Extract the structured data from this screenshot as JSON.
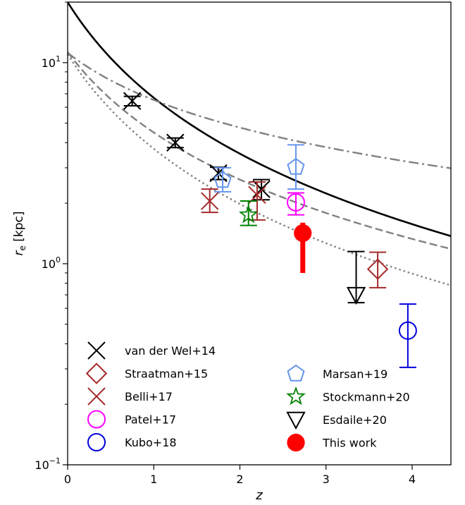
{
  "chart_data": {
    "type": "scatter",
    "title": "",
    "xlabel": "z",
    "ylabel_main": "r",
    "ylabel_sub": "e",
    "ylabel_unit": " [kpc]",
    "xlim": [
      0,
      4.45
    ],
    "ylim": [
      0.1,
      20
    ],
    "yscale": "log",
    "xticks": [
      0,
      1,
      2,
      3,
      4
    ],
    "xtick_labels": [
      "0",
      "1",
      "2",
      "3",
      "4"
    ],
    "yticks": [
      {
        "value": 0.1,
        "base": "10",
        "exp": "−1"
      },
      {
        "value": 1,
        "base": "10",
        "exp": "0"
      },
      {
        "value": 10,
        "base": "10",
        "exp": "1"
      }
    ],
    "grid": false,
    "legend_position": "bottom-left (two columns)",
    "curves": [
      {
        "style": "solid",
        "color": "#000000",
        "A": 20.0,
        "alpha": -1.58
      },
      {
        "style": "dashed",
        "color": "#808080",
        "A": 11.3,
        "alpha": -1.33
      },
      {
        "style": "dotted",
        "color": "#808080",
        "A": 11.0,
        "alpha": -1.56
      },
      {
        "style": "dashdot",
        "color": "#808080",
        "A": 11.2,
        "alpha": -0.78
      }
    ],
    "series": [
      {
        "name": "van der Wel+14",
        "marker": "x",
        "color": "#000000",
        "points": [
          {
            "x": 0.75,
            "y": 6.45,
            "ylo": 6.1,
            "yhi": 6.8
          },
          {
            "x": 1.25,
            "y": 4.0,
            "ylo": 3.78,
            "yhi": 4.22
          },
          {
            "x": 1.75,
            "y": 2.82,
            "ylo": 2.62,
            "yhi": 3.02
          },
          {
            "x": 2.25,
            "y": 2.35,
            "ylo": 2.08,
            "yhi": 2.62
          }
        ]
      },
      {
        "name": "Straatman+15",
        "marker": "diamond",
        "color": "#a52a2a",
        "points": [
          {
            "x": 3.6,
            "y": 0.94,
            "ylo": 0.76,
            "yhi": 1.14
          }
        ]
      },
      {
        "name": "Belli+17",
        "marker": "x",
        "color": "#a52a2a",
        "points": [
          {
            "x": 1.65,
            "y": 2.05,
            "ylo": 1.8,
            "yhi": 2.35
          },
          {
            "x": 2.2,
            "y": 2.2,
            "ylo": 1.65,
            "yhi": 2.55
          }
        ]
      },
      {
        "name": "Patel+17",
        "marker": "circle-open",
        "color": "#ff00ff",
        "points": [
          {
            "x": 2.65,
            "y": 2.02,
            "ylo": 1.75,
            "yhi": 2.25
          }
        ]
      },
      {
        "name": "Kubo+18",
        "marker": "circle-open",
        "color": "#0000dd",
        "points": [
          {
            "x": 3.95,
            "y": 0.465,
            "ylo": 0.305,
            "yhi": 0.63
          }
        ]
      },
      {
        "name": "Marsan+19",
        "marker": "pentagon",
        "color": "#6495ed",
        "points": [
          {
            "x": 1.8,
            "y": 2.6,
            "ylo": 2.28,
            "yhi": 3.0
          },
          {
            "x": 2.65,
            "y": 3.02,
            "ylo": 2.35,
            "yhi": 3.9
          }
        ]
      },
      {
        "name": "Stockmann+20",
        "marker": "star",
        "color": "#008000",
        "points": [
          {
            "x": 2.1,
            "y": 1.75,
            "ylo": 1.55,
            "yhi": 2.05
          }
        ]
      },
      {
        "name": "Esdaile+20",
        "marker": "triangle-down",
        "color": "#000000",
        "points": [
          {
            "x": 3.35,
            "y": 0.7,
            "ylo": 0.64,
            "yhi": 1.15
          }
        ]
      },
      {
        "name": "This work",
        "marker": "circle-filled",
        "color": "#ff0000",
        "points": [
          {
            "x": 2.73,
            "y": 1.42,
            "ylo": 0.9,
            "yhi": 1.6
          }
        ]
      }
    ],
    "legend": [
      {
        "label": "van der Wel+14",
        "marker": "x",
        "color": "#000000"
      },
      {
        "label": "Straatman+15",
        "marker": "diamond",
        "color": "#a52a2a"
      },
      {
        "label": "Belli+17",
        "marker": "x",
        "color": "#a52a2a"
      },
      {
        "label": "Patel+17",
        "marker": "circle-open",
        "color": "#ff00ff"
      },
      {
        "label": "Kubo+18",
        "marker": "circle-open",
        "color": "#0000dd"
      },
      {
        "label": "Marsan+19",
        "marker": "pentagon",
        "color": "#6495ed"
      },
      {
        "label": "Stockmann+20",
        "marker": "star",
        "color": "#008000"
      },
      {
        "label": "Esdaile+20",
        "marker": "triangle-down",
        "color": "#000000"
      },
      {
        "label": "This work",
        "marker": "circle-filled",
        "color": "#ff0000"
      }
    ]
  }
}
